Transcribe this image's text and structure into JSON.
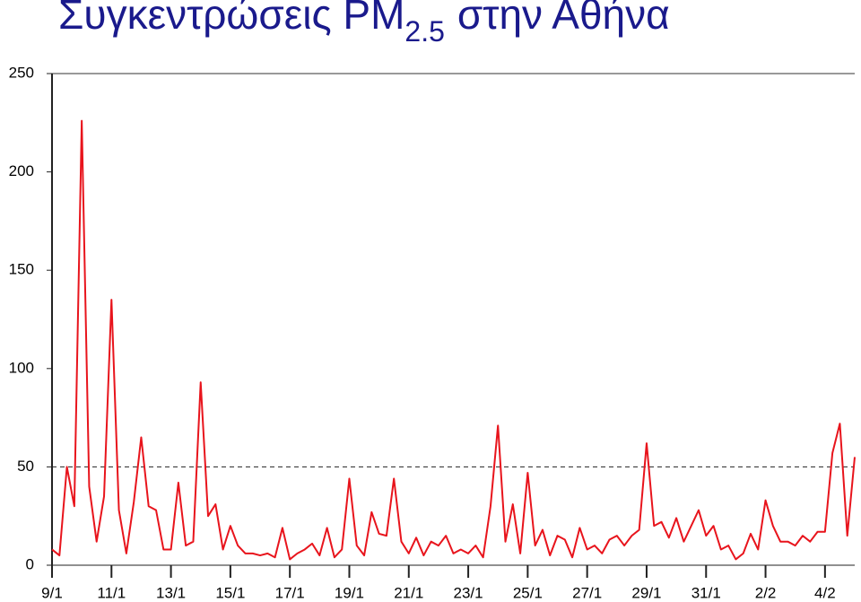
{
  "chart_data": {
    "type": "line",
    "title": {
      "text": "Συγκεντρώσεις PM",
      "subscript": "2.5",
      "suffix": "στην Αθήνα"
    },
    "x": [
      0,
      0.25,
      0.5,
      0.75,
      1,
      1.25,
      1.5,
      1.75,
      2,
      2.25,
      2.5,
      2.75,
      3,
      3.25,
      3.5,
      3.75,
      4,
      4.25,
      4.5,
      4.75,
      5,
      5.25,
      5.5,
      5.75,
      6,
      6.25,
      6.5,
      6.75,
      7,
      7.25,
      7.5,
      7.75,
      8,
      8.25,
      8.5,
      8.75,
      9,
      9.25,
      9.5,
      9.75,
      10,
      10.25,
      10.5,
      10.75,
      11,
      11.25,
      11.5,
      11.75,
      12,
      12.25,
      12.5,
      12.75,
      13,
      13.25,
      13.5,
      13.75,
      14,
      14.25,
      14.5,
      14.75,
      15,
      15.25,
      15.5,
      15.75,
      16,
      16.25,
      16.5,
      16.75,
      17,
      17.25,
      17.5,
      17.75,
      18,
      18.25,
      18.5,
      18.75,
      19,
      19.25,
      19.5,
      19.75,
      20,
      20.25,
      20.5,
      20.75,
      21,
      21.25,
      21.5,
      21.75,
      22,
      22.25,
      22.5,
      22.75,
      23,
      23.25,
      23.5,
      23.75,
      24,
      24.25,
      24.5,
      24.75,
      25,
      25.25,
      25.5,
      25.75,
      26,
      26.25,
      26.5,
      26.75,
      27
    ],
    "series": [
      {
        "color": "#e8141c",
        "values": [
          8,
          5,
          50,
          30,
          226,
          40,
          12,
          35,
          135,
          28,
          6,
          32,
          65,
          30,
          28,
          8,
          8,
          42,
          10,
          12,
          93,
          25,
          31,
          8,
          20,
          10,
          6,
          6,
          5,
          6,
          4,
          19,
          3,
          6,
          8,
          11,
          5,
          19,
          4,
          8,
          44,
          10,
          5,
          27,
          16,
          15,
          44,
          12,
          6,
          14,
          5,
          12,
          10,
          15,
          6,
          8,
          6,
          10,
          4,
          30,
          71,
          12,
          31,
          6,
          47,
          10,
          18,
          5,
          15,
          13,
          4,
          19,
          8,
          10,
          6,
          13,
          15,
          10,
          15,
          18,
          62,
          20,
          22,
          14,
          24,
          12,
          20,
          28,
          15,
          20,
          8,
          10,
          3,
          6,
          16,
          8,
          33,
          20,
          12,
          12,
          10,
          15,
          12,
          17,
          17,
          57,
          72,
          15,
          55
        ]
      }
    ],
    "threshold": 50,
    "xlim": [
      0,
      27
    ],
    "xticks": [
      {
        "value": 0,
        "label": "9/1"
      },
      {
        "value": 2,
        "label": "11/1"
      },
      {
        "value": 4,
        "label": "13/1"
      },
      {
        "value": 6,
        "label": "15/1"
      },
      {
        "value": 8,
        "label": "17/1"
      },
      {
        "value": 10,
        "label": "19/1"
      },
      {
        "value": 12,
        "label": "21/1"
      },
      {
        "value": 14,
        "label": "23/1"
      },
      {
        "value": 16,
        "label": "25/1"
      },
      {
        "value": 18,
        "label": "27/1"
      },
      {
        "value": 20,
        "label": "29/1"
      },
      {
        "value": 22,
        "label": "31/1"
      },
      {
        "value": 24,
        "label": "2/2"
      },
      {
        "value": 26,
        "label": "4/2"
      }
    ],
    "ylim": [
      0,
      250
    ],
    "yticks": [
      0,
      50,
      100,
      150,
      200,
      250
    ]
  }
}
